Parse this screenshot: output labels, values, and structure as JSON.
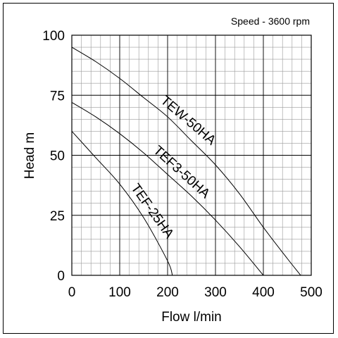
{
  "chart_data": {
    "type": "line",
    "title": "",
    "annotation": "Speed - 3600 rpm",
    "xlabel": "Flow l/min",
    "ylabel": "Head m",
    "xlim": [
      0,
      500
    ],
    "ylim": [
      0,
      100
    ],
    "x_ticks": [
      0,
      100,
      200,
      300,
      400,
      500
    ],
    "y_ticks": [
      0,
      25,
      50,
      75,
      100
    ],
    "grid": true,
    "minor_grid_x_step": 20,
    "minor_grid_y_step": 5,
    "legend": "none",
    "series": [
      {
        "name": "TEW-50HA",
        "x": [
          0,
          50,
          100,
          150,
          200,
          250,
          300,
          350,
          400,
          450,
          478
        ],
        "y": [
          95,
          89,
          82,
          74,
          66,
          56,
          46,
          34,
          20,
          7,
          0
        ]
      },
      {
        "name": "TEF3-50HA",
        "x": [
          0,
          50,
          100,
          150,
          200,
          250,
          300,
          350,
          400
        ],
        "y": [
          72,
          66,
          59,
          51,
          42,
          33,
          23,
          12,
          0
        ]
      },
      {
        "name": "TEF-25HA",
        "x": [
          0,
          50,
          100,
          150,
          200,
          210
        ],
        "y": [
          60,
          49,
          38,
          24,
          6,
          0
        ]
      }
    ]
  }
}
